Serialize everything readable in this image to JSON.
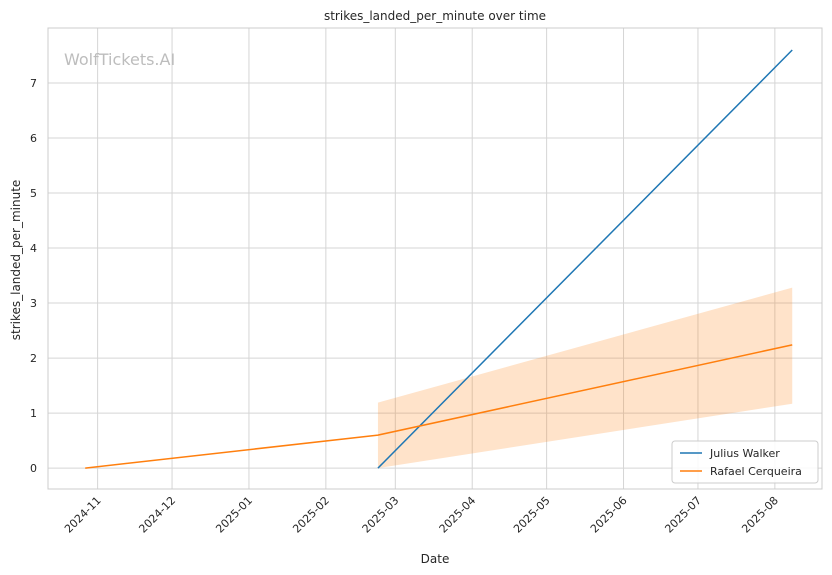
{
  "chart_data": {
    "type": "line",
    "title": "strikes_landed_per_minute over time",
    "xlabel": "Date",
    "ylabel": "strikes_landed_per_minute",
    "watermark": "WolfTickets.AI",
    "x_axis_type": "date",
    "xlim": [
      "2024-10-12",
      "2025-08-20"
    ],
    "ylim": [
      -0.38,
      8.0
    ],
    "x_ticks": [
      "2024-11-01",
      "2024-12-01",
      "2025-01-01",
      "2025-02-01",
      "2025-03-01",
      "2025-04-01",
      "2025-05-01",
      "2025-06-01",
      "2025-07-01",
      "2025-08-01"
    ],
    "x_tick_labels": [
      "2024-11",
      "2024-12",
      "2025-01",
      "2025-02",
      "2025-03",
      "2025-04",
      "2025-05",
      "2025-06",
      "2025-07",
      "2025-08"
    ],
    "y_ticks": [
      0,
      1,
      2,
      3,
      4,
      5,
      6,
      7
    ],
    "y_tick_labels": [
      "0",
      "1",
      "2",
      "3",
      "4",
      "5",
      "6",
      "7"
    ],
    "grid": true,
    "legend_position": "bottom-right",
    "series": [
      {
        "name": "Julius Walker",
        "color": "#1f77b4",
        "x": [
          "2025-02-22",
          "2025-08-08"
        ],
        "y": [
          0.0,
          7.6
        ]
      },
      {
        "name": "Rafael Cerqueira",
        "color": "#ff7f0e",
        "x": [
          "2024-10-27",
          "2025-02-22",
          "2025-08-08"
        ],
        "y": [
          0.0,
          0.6,
          2.24
        ],
        "band": {
          "color": "#ff7f0e",
          "x": [
            "2025-02-22",
            "2025-08-08"
          ],
          "lower": [
            0.0,
            1.17
          ],
          "upper": [
            1.19,
            3.28
          ]
        }
      }
    ]
  }
}
